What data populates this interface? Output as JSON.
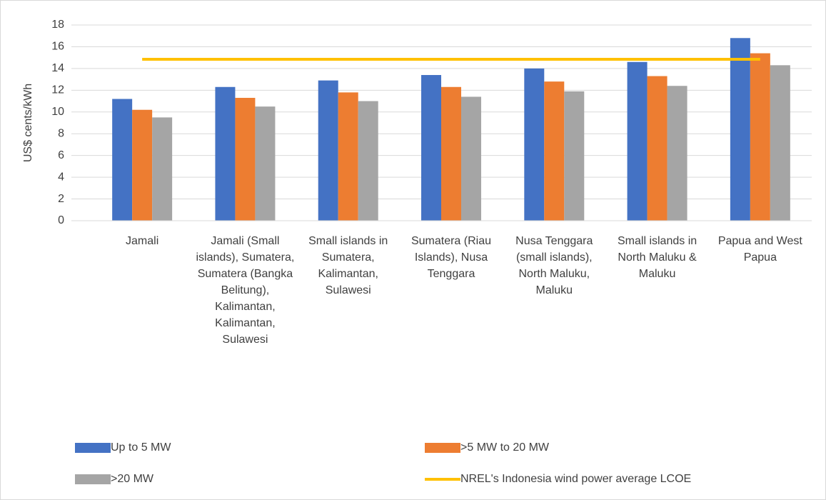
{
  "chart_data": {
    "type": "bar",
    "ylabel": "US$ cents/kWh",
    "categories": [
      "Jamali",
      "Jamali (Small islands), Sumatera, Sumatera (Bangka Belitung), Kalimantan, Kalimantan, Sulawesi",
      "Small islands in Sumatera, Kalimantan, Sulawesi",
      "Sumatera (Riau Islands), Nusa Tenggara",
      "Nusa Tenggara (small islands), North Maluku, Maluku",
      "Small islands in North Maluku & Maluku",
      "Papua and West Papua"
    ],
    "series": [
      {
        "name": "Up to 5 MW",
        "color": "#4472c4",
        "values": [
          11.2,
          12.3,
          12.9,
          13.4,
          14.0,
          14.6,
          16.8
        ]
      },
      {
        "name": ">5 MW to 20 MW",
        "color": "#ed7d31",
        "values": [
          10.2,
          11.3,
          11.8,
          12.3,
          12.8,
          13.3,
          15.4
        ]
      },
      {
        "name": ">20 MW",
        "color": "#a5a5a5",
        "values": [
          9.5,
          10.5,
          11.0,
          11.4,
          11.9,
          12.4,
          14.3
        ]
      },
      {
        "name": "NREL's Indonesia wind power average LCOE",
        "color": "#ffc000",
        "type": "line",
        "values": [
          14.85,
          14.85,
          14.85,
          14.85,
          14.85,
          14.85,
          14.85
        ]
      }
    ],
    "ylim": [
      0,
      18
    ],
    "yticks": [
      0,
      2,
      4,
      6,
      8,
      10,
      12,
      14,
      16,
      18
    ],
    "grid": true
  }
}
